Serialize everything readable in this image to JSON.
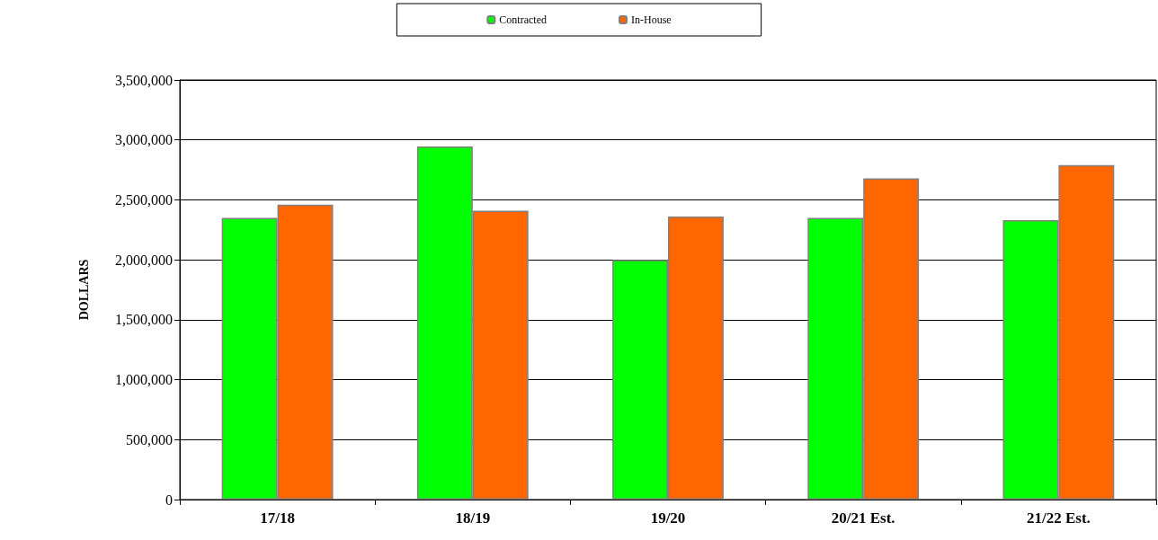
{
  "chart_data": {
    "type": "bar",
    "ylabel": "DOLLARS",
    "categories": [
      "17/18",
      "18/19",
      "19/20",
      "20/21 Est.",
      "21/22 Est."
    ],
    "series": [
      {
        "name": "Contracted",
        "color": "#00ff00",
        "values": [
          2350000,
          2945000,
          2000000,
          2350000,
          2330000
        ]
      },
      {
        "name": "In-House",
        "color": "#ff6600",
        "values": [
          2460000,
          2410000,
          2360000,
          2680000,
          2790000
        ]
      }
    ],
    "ylim": [
      0,
      3500000
    ],
    "yticks": [
      0,
      {
        "value": 500000,
        "label": "500,000"
      },
      {
        "value": 1000000,
        "label": "1,000,000"
      },
      {
        "value": 1500000,
        "label": "1,500,000"
      },
      {
        "value": 2000000,
        "label": "2,000,000"
      },
      {
        "value": 2500000,
        "label": "2,500,000"
      },
      {
        "value": 3000000,
        "label": "3,000,000"
      },
      {
        "value": 3500000,
        "label": "3,500,000"
      }
    ],
    "grid": "y",
    "legend": "top"
  }
}
